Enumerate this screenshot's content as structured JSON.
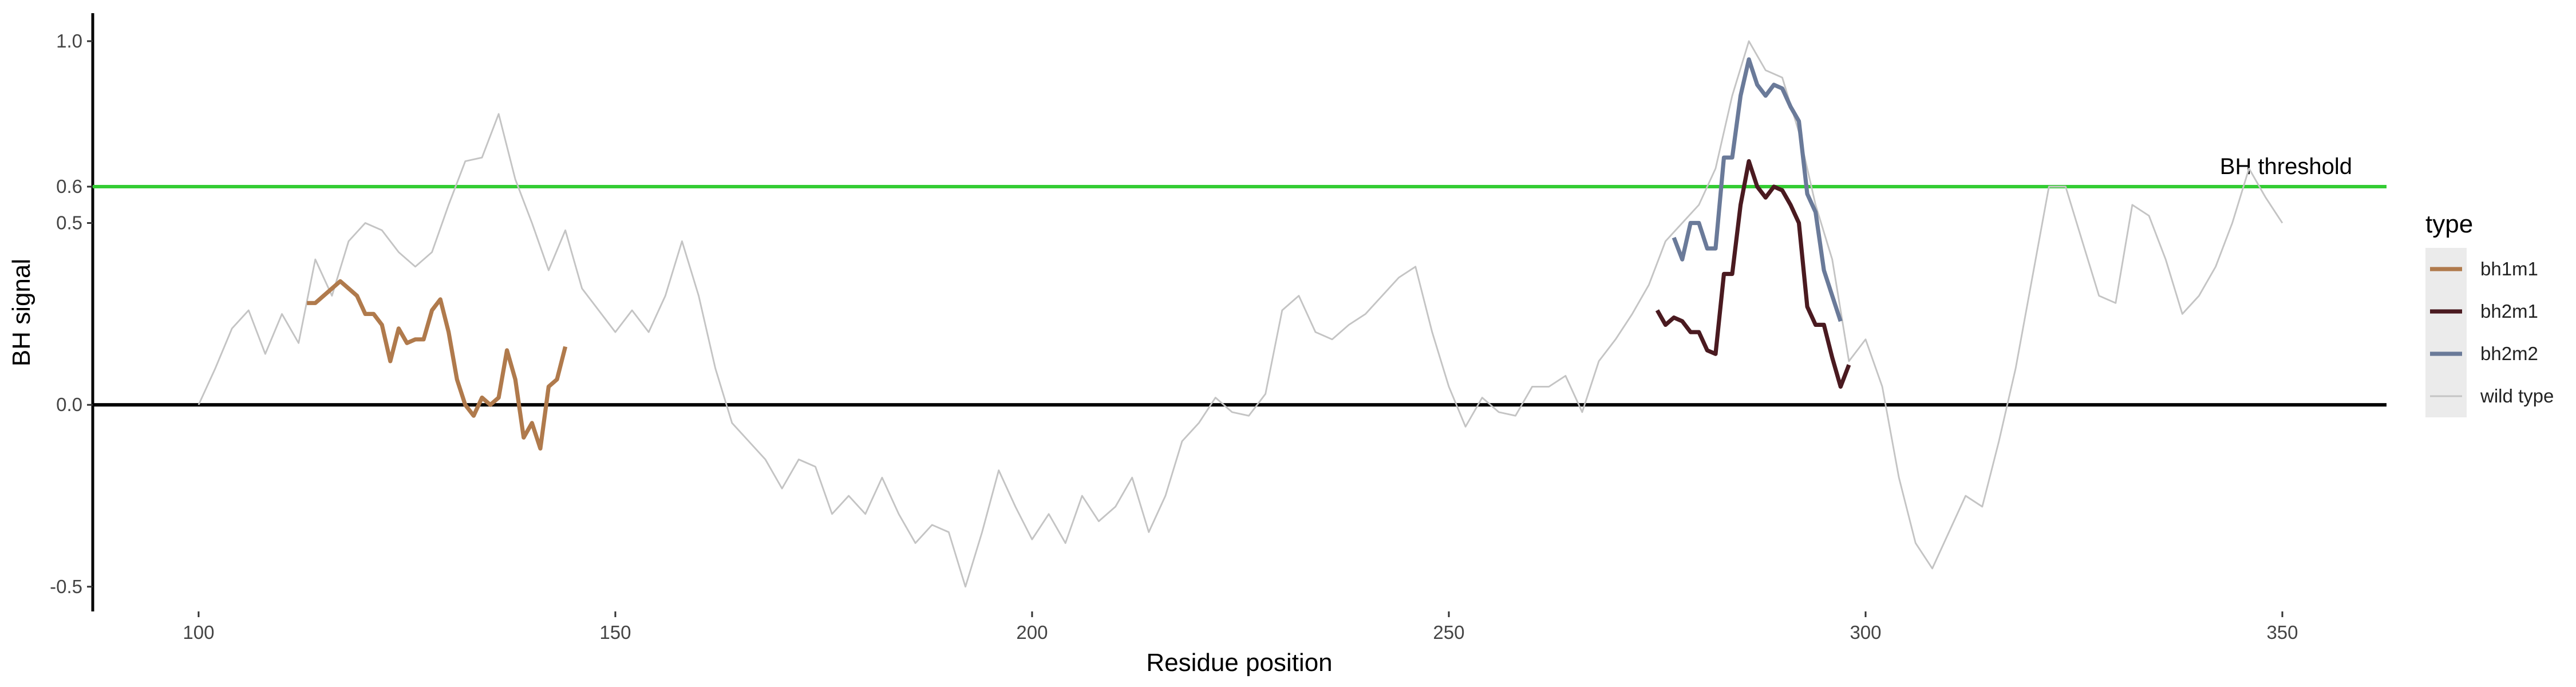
{
  "chart_data": {
    "type": "line",
    "xlabel": "Residue position",
    "ylabel": "BH signal",
    "xlim": [
      87.3,
      362.5
    ],
    "ylim": [
      -0.568,
      1.077
    ],
    "xticks": [
      100,
      150,
      200,
      250,
      300,
      350
    ],
    "yticks": [
      -0.5,
      {
        "value": 0,
        "label": "0.0"
      },
      0.5,
      0.6,
      {
        "value": 1,
        "label": "1.0"
      }
    ],
    "hlines": [
      {
        "value": 0.6,
        "color": "#33cc33",
        "label": "BH threshold"
      },
      {
        "value": 0,
        "color": "#000000"
      }
    ],
    "legend_title": "type",
    "legend": "right",
    "series": [
      {
        "name": "bh1m1",
        "color": "#b07a4c",
        "line_width": 2.5,
        "x": [
          113,
          114,
          115,
          116,
          117,
          118,
          119,
          120,
          121,
          122,
          123,
          124,
          125,
          126,
          127,
          128,
          129,
          130,
          131,
          132,
          133,
          134,
          135,
          136,
          137,
          138,
          139,
          140,
          141,
          142,
          143,
          144
        ],
        "values": [
          0.28,
          0.28,
          0.3,
          0.32,
          0.34,
          0.32,
          0.3,
          0.25,
          0.25,
          0.22,
          0.12,
          0.21,
          0.17,
          0.18,
          0.18,
          0.26,
          0.29,
          0.2,
          0.07,
          0.0,
          -0.03,
          0.02,
          0.0,
          0.02,
          0.15,
          0.07,
          -0.09,
          -0.05,
          -0.12,
          0.05,
          0.07,
          0.16
        ]
      },
      {
        "name": "bh2m1",
        "color": "#4a1a20",
        "line_width": 2.5,
        "x": [
          275,
          276,
          277,
          278,
          279,
          280,
          281,
          282,
          283,
          284,
          285,
          286,
          287,
          288,
          289,
          290,
          291,
          292,
          293,
          294,
          295,
          296,
          297,
          298
        ],
        "values": [
          0.26,
          0.22,
          0.24,
          0.23,
          0.2,
          0.2,
          0.15,
          0.14,
          0.36,
          0.36,
          0.55,
          0.67,
          0.6,
          0.57,
          0.6,
          0.59,
          0.55,
          0.5,
          0.27,
          0.22,
          0.22,
          0.13,
          0.05,
          0.11
        ]
      },
      {
        "name": "bh2m2",
        "color": "#6a7a99",
        "line_width": 2.5,
        "x": [
          277,
          278,
          279,
          280,
          281,
          282,
          283,
          284,
          285,
          286,
          287,
          288,
          289,
          290,
          291,
          292,
          293,
          294,
          295,
          296,
          297
        ],
        "values": [
          0.46,
          0.4,
          0.5,
          0.5,
          0.43,
          0.43,
          0.68,
          0.68,
          0.85,
          0.95,
          0.88,
          0.85,
          0.88,
          0.87,
          0.82,
          0.78,
          0.58,
          0.53,
          0.37,
          0.3,
          0.23
        ]
      },
      {
        "name": "wild type",
        "color": "#c4c4c4",
        "line_width": 1,
        "x": [
          100,
          102,
          104,
          106,
          108,
          110,
          112,
          114,
          116,
          118,
          120,
          122,
          124,
          126,
          128,
          130,
          132,
          134,
          136,
          138,
          140,
          142,
          144,
          146,
          148,
          150,
          152,
          154,
          156,
          158,
          160,
          162,
          164,
          166,
          168,
          170,
          172,
          174,
          176,
          178,
          180,
          182,
          184,
          186,
          188,
          190,
          192,
          194,
          196,
          198,
          200,
          202,
          204,
          206,
          208,
          210,
          212,
          214,
          216,
          218,
          220,
          222,
          224,
          226,
          228,
          230,
          232,
          234,
          236,
          238,
          240,
          242,
          244,
          246,
          248,
          250,
          252,
          254,
          256,
          258,
          260,
          262,
          264,
          266,
          268,
          270,
          272,
          274,
          276,
          278,
          280,
          282,
          284,
          286,
          288,
          290,
          292,
          294,
          296,
          298,
          300,
          302,
          304,
          306,
          308,
          310,
          312,
          314,
          316,
          318,
          320,
          322,
          324,
          326,
          328,
          330,
          332,
          334,
          336,
          338,
          340,
          342,
          344,
          346,
          348,
          350
        ],
        "values": [
          0.0,
          0.1,
          0.21,
          0.26,
          0.14,
          0.25,
          0.17,
          0.4,
          0.3,
          0.45,
          0.5,
          0.48,
          0.42,
          0.38,
          0.42,
          0.55,
          0.67,
          0.68,
          0.8,
          0.62,
          0.5,
          0.37,
          0.48,
          0.32,
          0.26,
          0.2,
          0.26,
          0.2,
          0.3,
          0.45,
          0.3,
          0.1,
          -0.05,
          -0.1,
          -0.15,
          -0.23,
          -0.15,
          -0.17,
          -0.3,
          -0.25,
          -0.3,
          -0.2,
          -0.3,
          -0.38,
          -0.33,
          -0.35,
          -0.5,
          -0.35,
          -0.18,
          -0.28,
          -0.37,
          -0.3,
          -0.38,
          -0.25,
          -0.32,
          -0.28,
          -0.2,
          -0.35,
          -0.25,
          -0.1,
          -0.05,
          0.02,
          -0.02,
          -0.03,
          0.03,
          0.26,
          0.3,
          0.2,
          0.18,
          0.22,
          0.25,
          0.3,
          0.35,
          0.38,
          0.2,
          0.05,
          -0.06,
          0.02,
          -0.02,
          -0.03,
          0.05,
          0.05,
          0.08,
          -0.02,
          0.12,
          0.18,
          0.25,
          0.33,
          0.45,
          0.5,
          0.55,
          0.65,
          0.85,
          1.0,
          0.92,
          0.9,
          0.75,
          0.55,
          0.4,
          0.12,
          0.18,
          0.05,
          -0.2,
          -0.38,
          -0.45,
          -0.35,
          -0.25,
          -0.28,
          -0.1,
          0.1,
          0.35,
          0.6,
          0.6,
          0.45,
          0.3,
          0.28,
          0.55,
          0.52,
          0.4,
          0.25,
          0.3,
          0.38,
          0.5,
          0.65,
          0.57,
          0.5
        ]
      }
    ]
  }
}
